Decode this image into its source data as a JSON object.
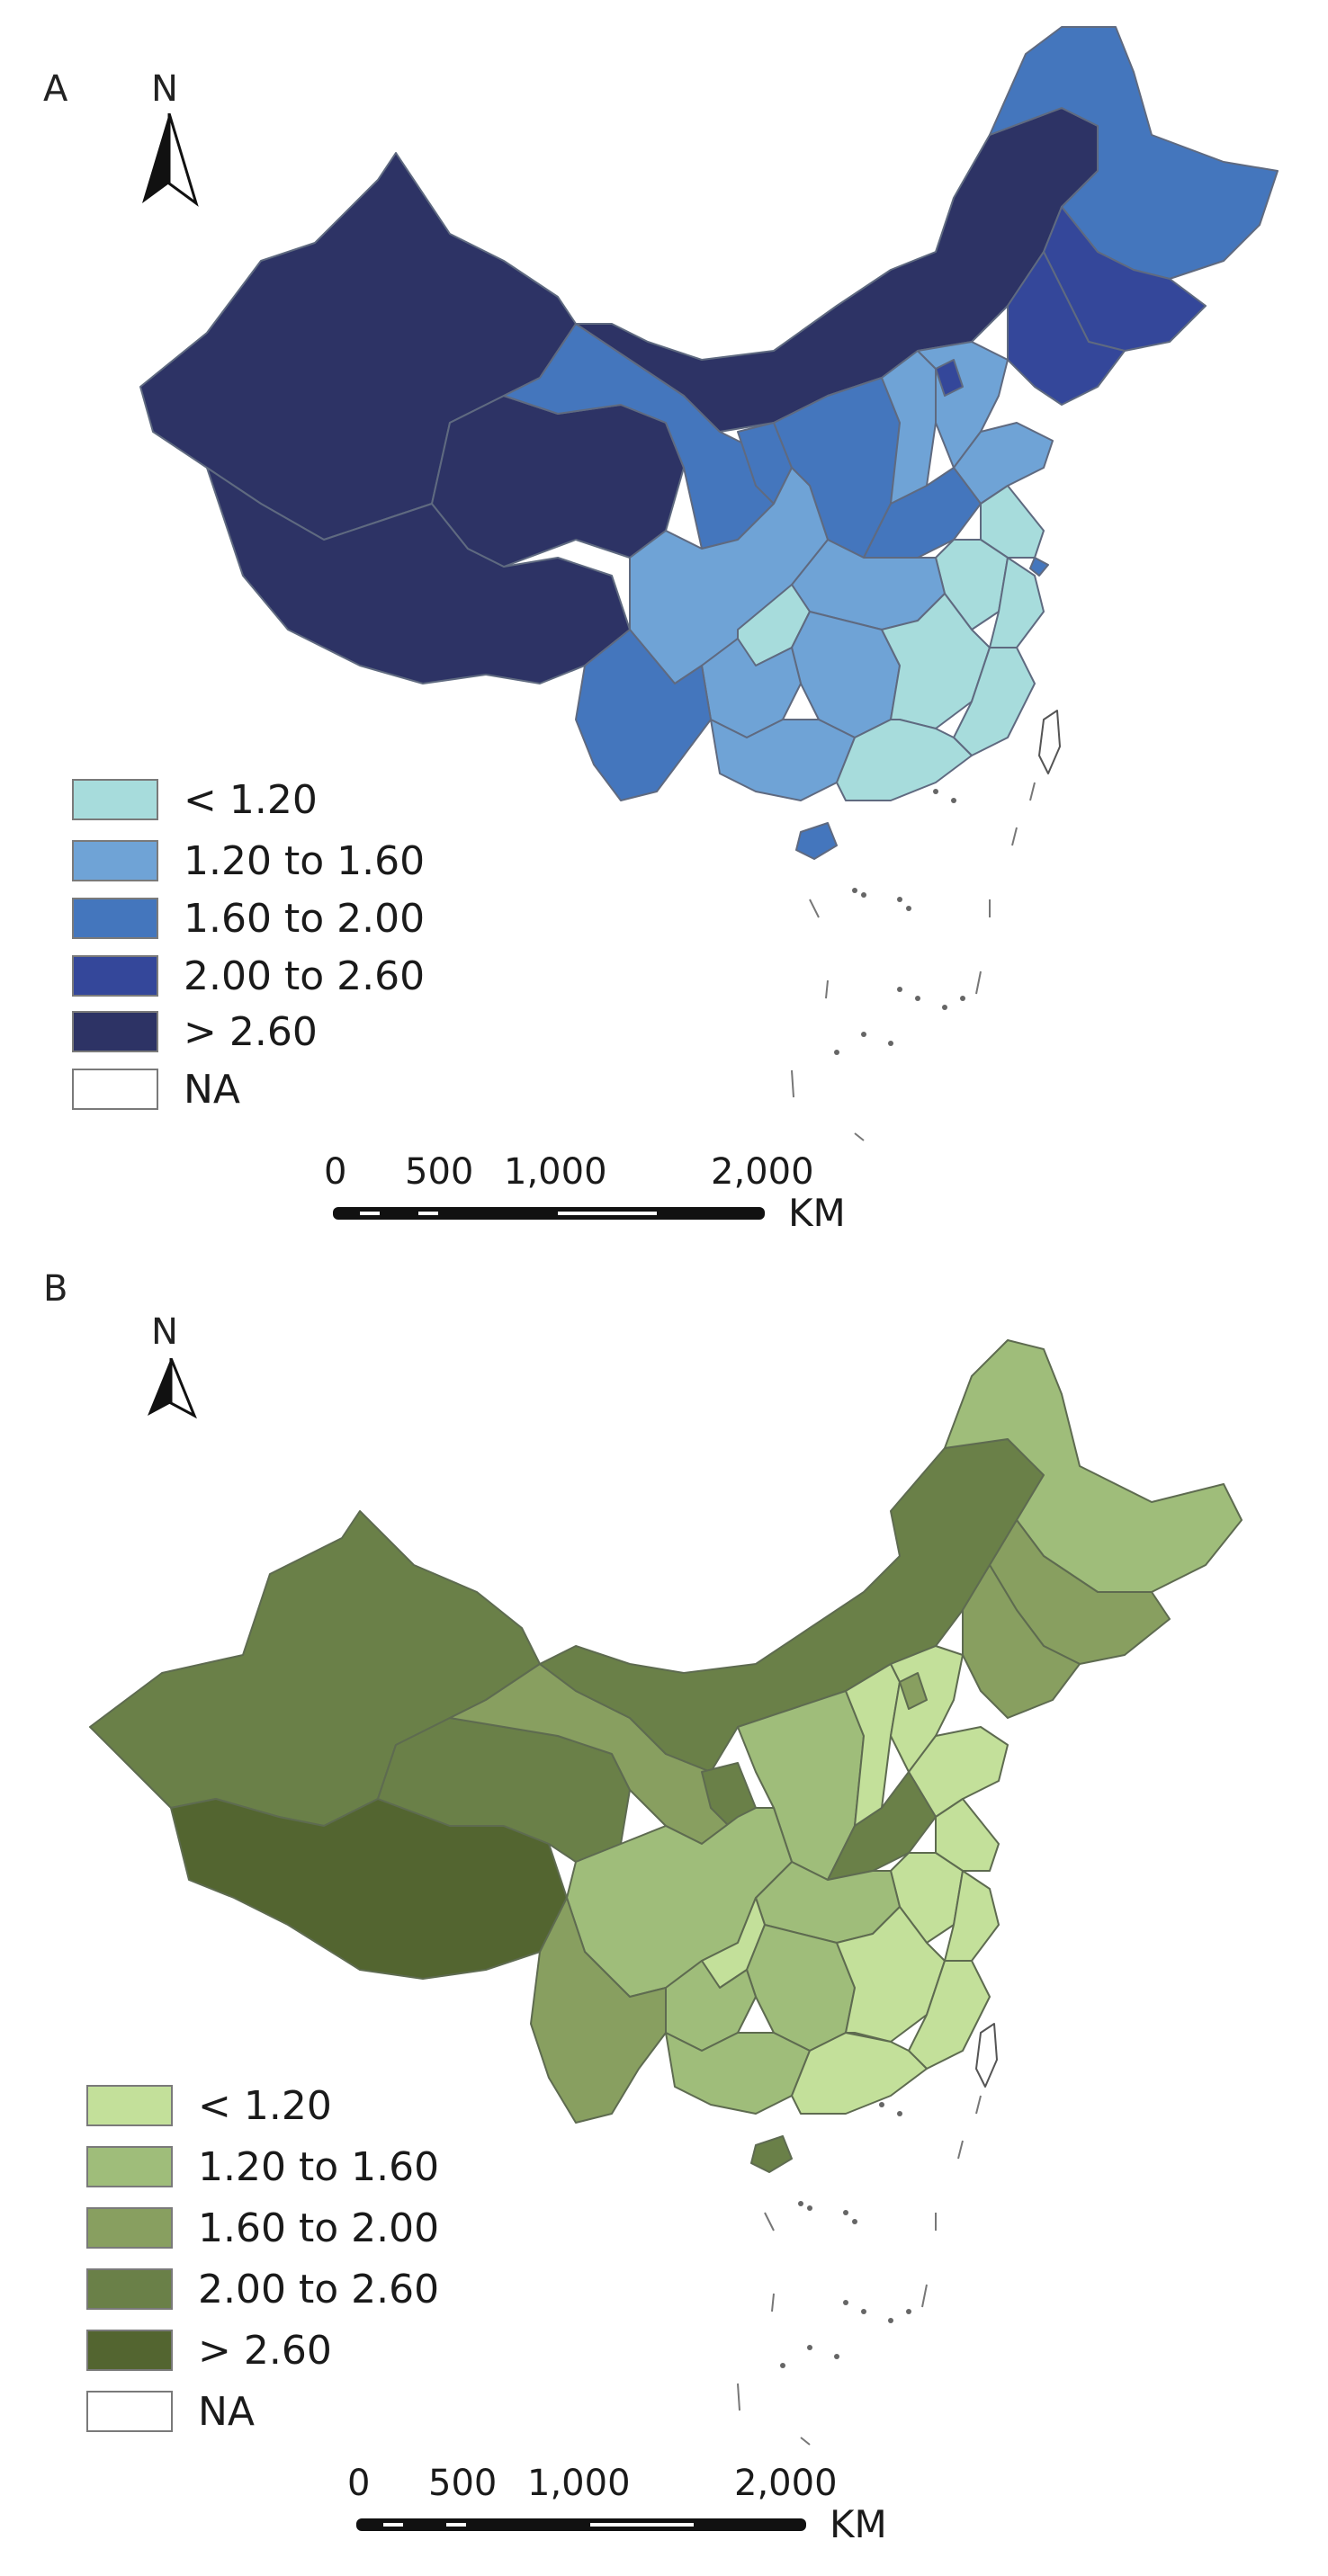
{
  "maps": [
    {
      "panel_label": "A",
      "north_label": "N",
      "legend": {
        "items": [
          {
            "label": "< 1.20",
            "color": "#a7dcdc"
          },
          {
            "label": "1.20 to 1.60",
            "color": "#6fa3d6"
          },
          {
            "label": "1.60 to 2.00",
            "color": "#4476bd"
          },
          {
            "label": "2.00 to 2.60",
            "color": "#34479a"
          },
          {
            "label": "> 2.60",
            "color": "#2d3365"
          },
          {
            "label": "NA",
            "color": "#ffffff"
          }
        ]
      },
      "scale": {
        "ticks": [
          "0",
          "500",
          "1,000",
          "2,000"
        ],
        "unit": "KM"
      }
    },
    {
      "panel_label": "B",
      "north_label": "N",
      "legend": {
        "items": [
          {
            "label": "< 1.20",
            "color": "#c3e09a"
          },
          {
            "label": "1.20 to 1.60",
            "color": "#9fbd7a"
          },
          {
            "label": "1.60 to 2.00",
            "color": "#889f60"
          },
          {
            "label": "2.00 to 2.60",
            "color": "#6a8048"
          },
          {
            "label": "> 2.60",
            "color": "#536530"
          },
          {
            "label": "NA",
            "color": "#ffffff"
          }
        ]
      },
      "scale": {
        "ticks": [
          "0",
          "500",
          "1,000",
          "2,000"
        ],
        "unit": "KM"
      }
    }
  ]
}
